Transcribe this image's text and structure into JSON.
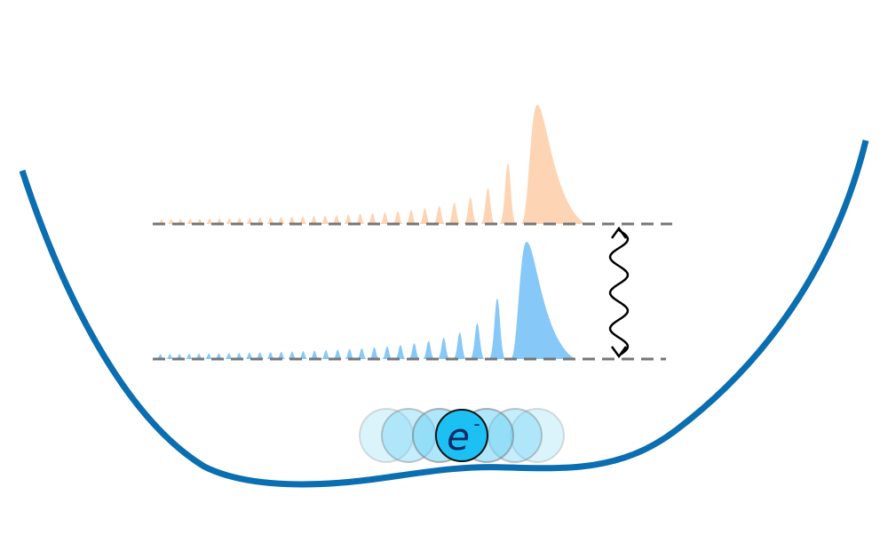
{
  "electron": {
    "symbol": "e",
    "charge": "-"
  }
}
